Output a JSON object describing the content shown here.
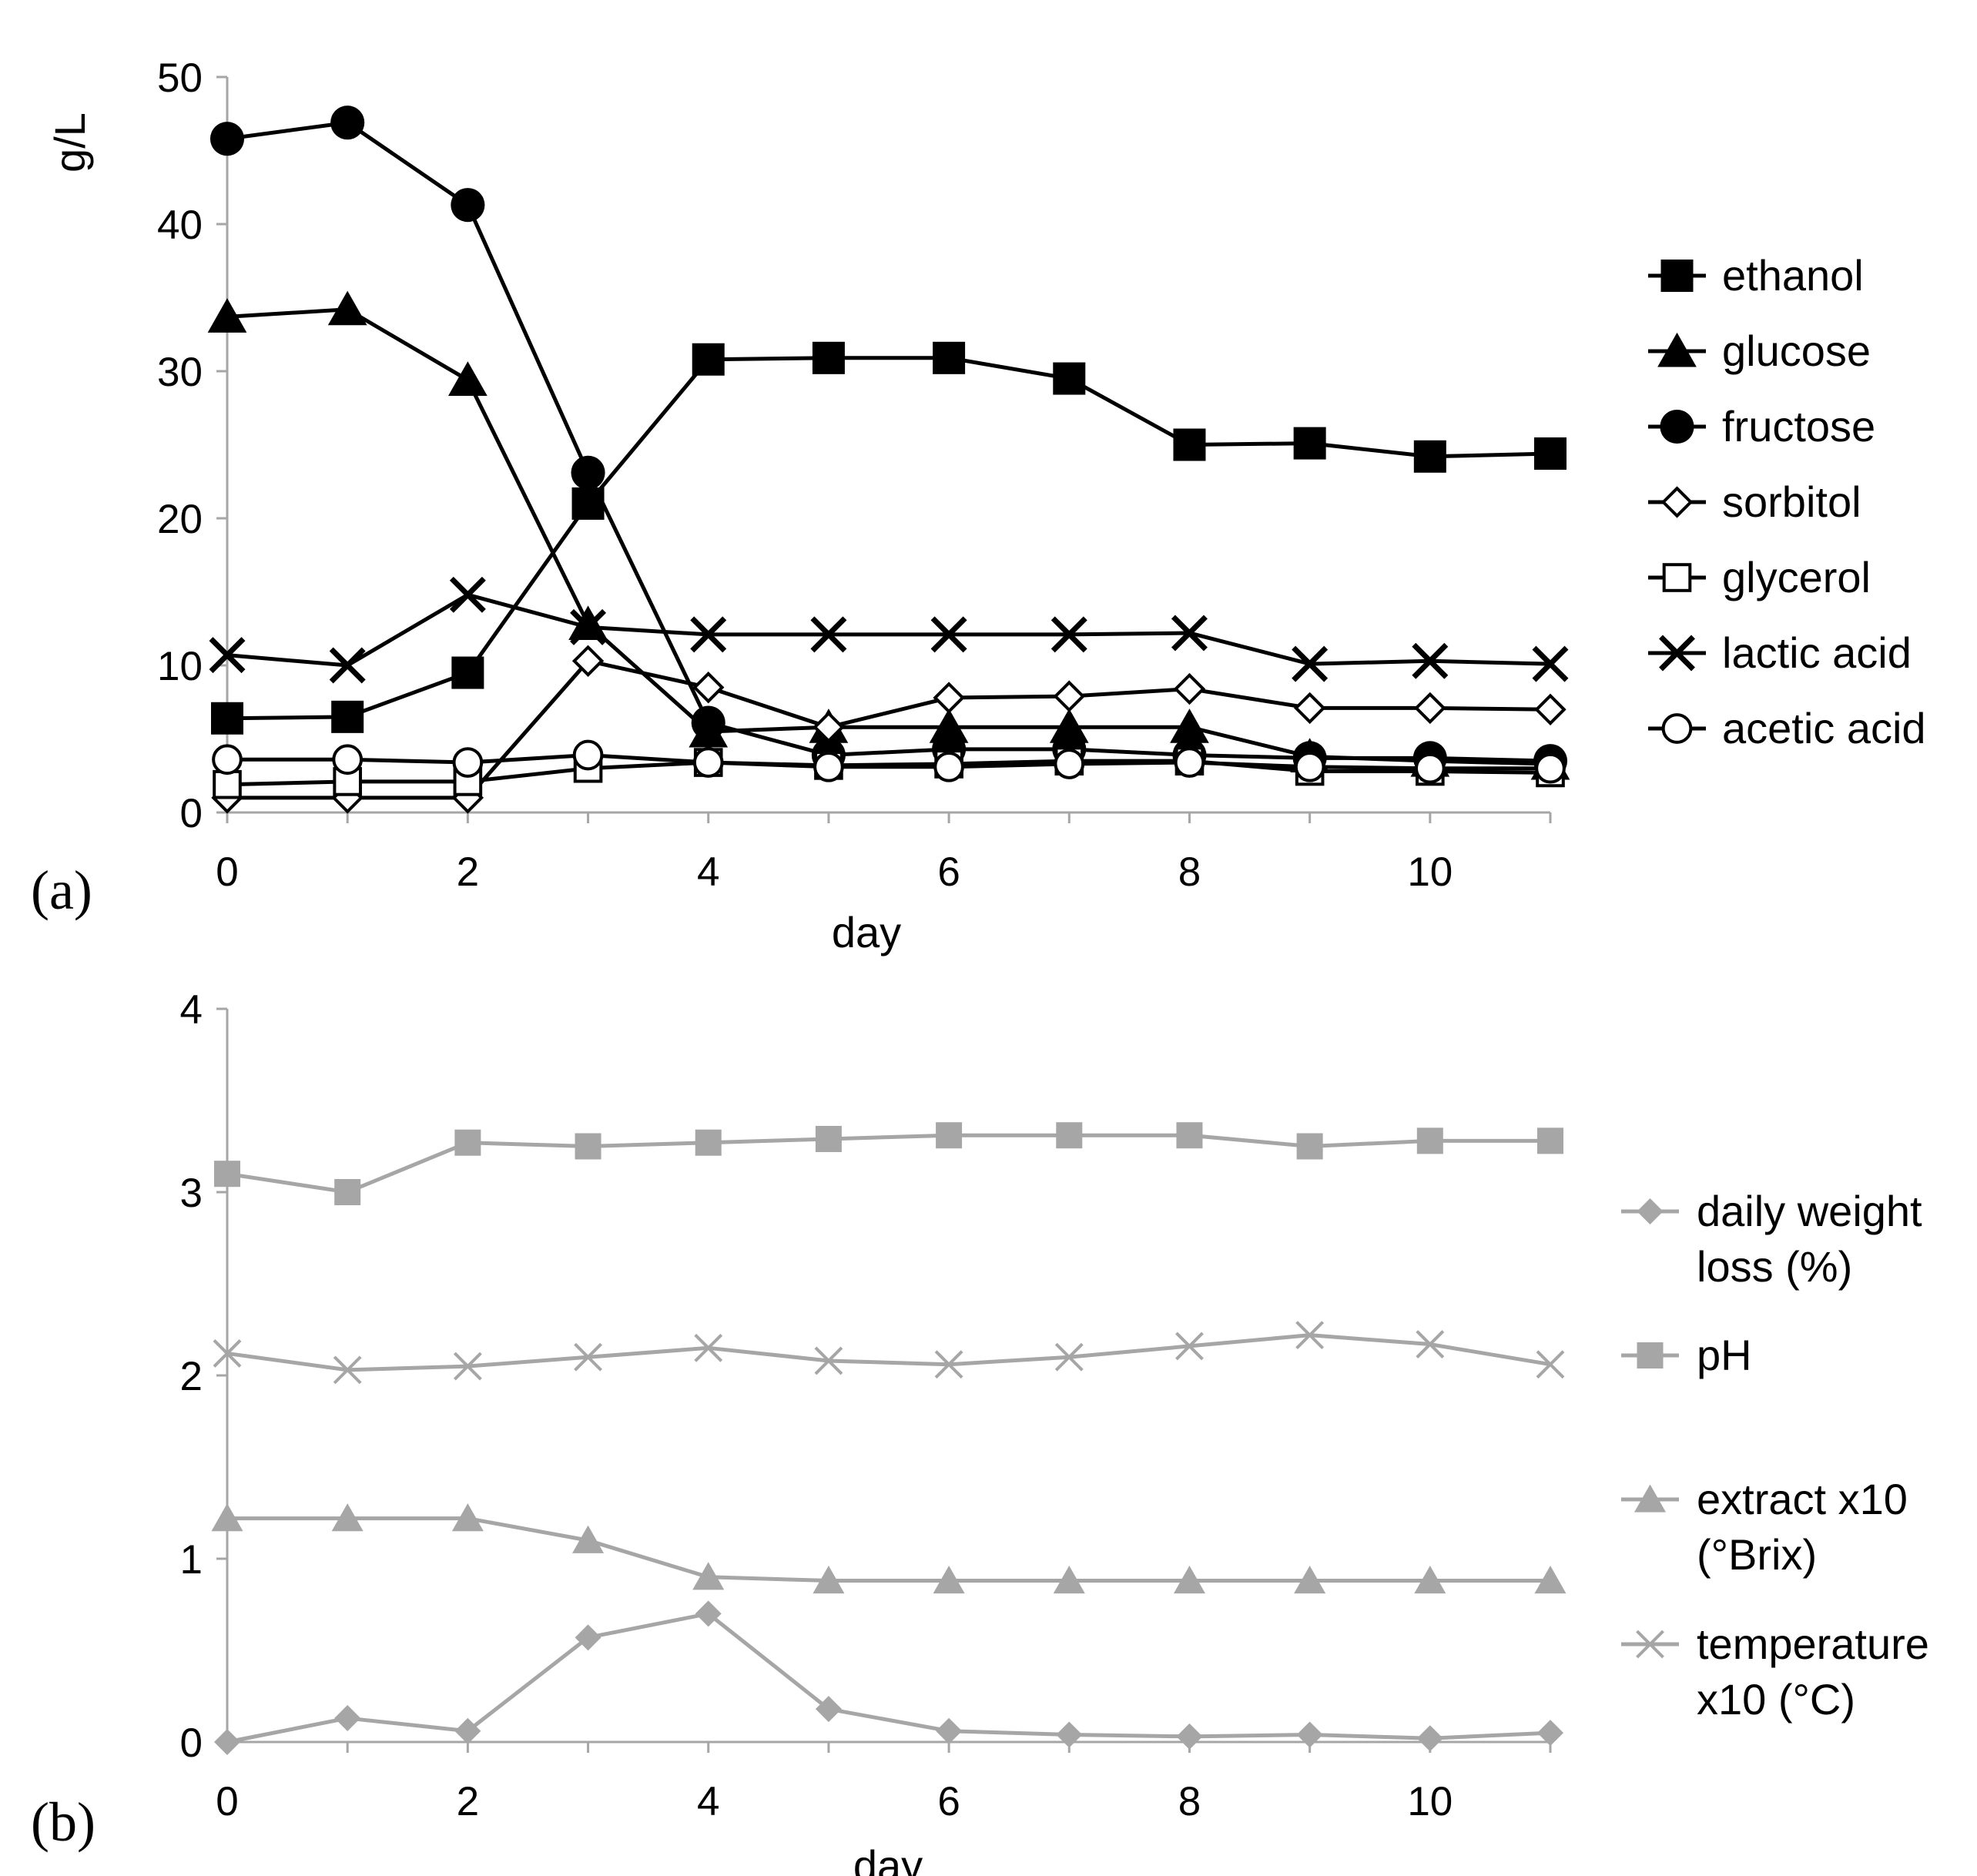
{
  "chart_data": [
    {
      "type": "line",
      "panel_label": "(a)",
      "xlabel": "day",
      "ylabel": "g/L",
      "xlim": [
        0,
        11
      ],
      "ylim": [
        0,
        50
      ],
      "xticks": [
        0,
        2,
        4,
        6,
        8,
        10
      ],
      "yticks": [
        0,
        10,
        20,
        30,
        40,
        50
      ],
      "legend_position": "right",
      "x": [
        0,
        1,
        2,
        3,
        4,
        5,
        6,
        7,
        8,
        9,
        10,
        11
      ],
      "series": [
        {
          "name": "ethanol",
          "marker": "square-filled",
          "color": "#000000",
          "values": [
            6.4,
            6.5,
            9.5,
            21.0,
            30.8,
            30.9,
            30.9,
            29.5,
            25.0,
            25.1,
            24.2,
            24.4
          ]
        },
        {
          "name": "glucose",
          "marker": "triangle-filled",
          "color": "#000000",
          "values": [
            33.7,
            34.2,
            29.4,
            12.8,
            5.5,
            5.8,
            5.8,
            5.8,
            5.8,
            3.8,
            3.5,
            3.3
          ]
        },
        {
          "name": "fructose",
          "marker": "circle-filled",
          "color": "#000000",
          "values": [
            45.8,
            46.9,
            41.3,
            23.1,
            6.1,
            3.9,
            4.3,
            4.3,
            3.9,
            3.7,
            3.7,
            3.5
          ]
        },
        {
          "name": "sorbitol",
          "marker": "diamond-open",
          "color": "#000000",
          "values": [
            1.0,
            1.0,
            1.0,
            10.3,
            8.5,
            5.8,
            7.8,
            7.9,
            8.4,
            7.1,
            7.1,
            7.0
          ]
        },
        {
          "name": "glycerol",
          "marker": "square-open",
          "color": "#000000",
          "values": [
            1.9,
            2.1,
            2.1,
            3.0,
            3.4,
            3.2,
            3.3,
            3.5,
            3.5,
            2.8,
            2.8,
            2.7
          ]
        },
        {
          "name": "lactic acid",
          "marker": "x",
          "color": "#000000",
          "values": [
            10.7,
            10.0,
            14.8,
            12.6,
            12.1,
            12.1,
            12.1,
            12.1,
            12.2,
            10.1,
            10.3,
            10.1
          ]
        },
        {
          "name": "acetic acid",
          "marker": "circle-open",
          "color": "#000000",
          "values": [
            3.6,
            3.6,
            3.4,
            3.9,
            3.4,
            3.1,
            3.1,
            3.3,
            3.4,
            3.1,
            3.0,
            3.0
          ]
        }
      ]
    },
    {
      "type": "line",
      "panel_label": "(b)",
      "xlabel": "day",
      "ylabel": "",
      "xlim": [
        0,
        11
      ],
      "ylim": [
        0,
        4
      ],
      "xticks": [
        0,
        2,
        4,
        6,
        8,
        10
      ],
      "yticks": [
        0,
        1,
        2,
        3,
        4
      ],
      "legend_position": "right",
      "x": [
        0,
        1,
        2,
        3,
        4,
        5,
        6,
        7,
        8,
        9,
        10,
        11
      ],
      "series": [
        {
          "name": "daily weight loss (%)",
          "legend_lines": [
            "daily weight",
            "loss (%)"
          ],
          "marker": "diamond-filled",
          "color": "#a6a6a6",
          "values": [
            0.0,
            0.13,
            0.06,
            0.57,
            0.7,
            0.18,
            0.06,
            0.04,
            0.03,
            0.04,
            0.02,
            0.05
          ]
        },
        {
          "name": "pH",
          "legend_lines": [
            "pH"
          ],
          "marker": "square-filled",
          "color": "#a6a6a6",
          "values": [
            3.1,
            3.0,
            3.27,
            3.25,
            3.27,
            3.29,
            3.31,
            3.31,
            3.31,
            3.25,
            3.28,
            3.28
          ]
        },
        {
          "name": "extract x10 (°Brix)",
          "legend_lines": [
            "extract x10",
            "(°Brix)"
          ],
          "marker": "triangle-filled",
          "color": "#a6a6a6",
          "values": [
            1.22,
            1.22,
            1.22,
            1.1,
            0.9,
            0.88,
            0.88,
            0.88,
            0.88,
            0.88,
            0.88,
            0.88
          ]
        },
        {
          "name": "temperature x10 (°C)",
          "legend_lines": [
            "temperature",
            "x10 (°C)"
          ],
          "marker": "x",
          "color": "#a6a6a6",
          "values": [
            2.12,
            2.03,
            2.05,
            2.1,
            2.15,
            2.08,
            2.06,
            2.1,
            2.16,
            2.22,
            2.17,
            2.06
          ]
        }
      ]
    }
  ]
}
